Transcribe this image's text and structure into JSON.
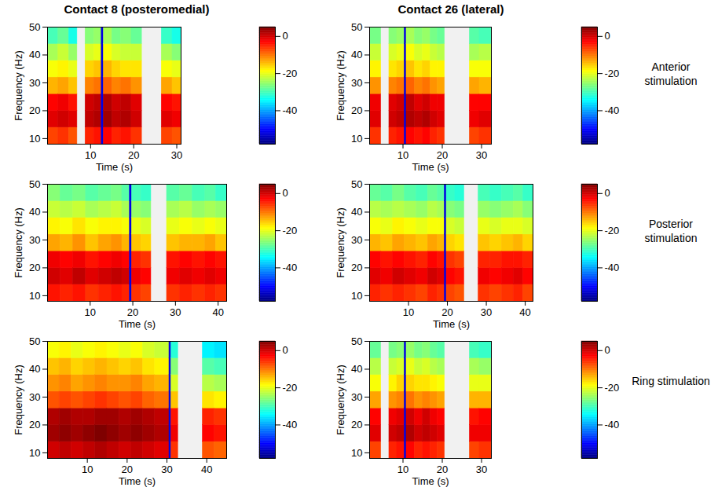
{
  "column_titles": [
    "Contact 8 (posteromedial)",
    "Contact 26 (lateral)"
  ],
  "row_labels": [
    "Anterior stimulation",
    "Posterior stimulation",
    "Ring stimulation"
  ],
  "chart_data": [
    {
      "type": "heatmap",
      "x_label": "Time (s)",
      "y_label": "Frequency (Hz)",
      "xlim": [
        0,
        31
      ],
      "xticks": [
        10,
        20,
        30
      ],
      "ylim": [
        8,
        50
      ],
      "yticks": [
        10,
        20,
        30,
        40,
        50
      ],
      "x_edges": [
        0,
        2.5,
        5,
        6.9,
        8.8,
        10.8,
        12.55,
        13.05,
        15,
        17,
        19.5,
        21.9,
        26.5,
        29,
        31
      ],
      "y_edges": [
        8,
        14,
        20,
        26,
        32,
        38,
        44,
        50
      ],
      "cells": [
        [
          -7,
          -1,
          -3,
          -14,
          -19,
          -24,
          -30
        ],
        [
          -6,
          0,
          -2,
          -13,
          -18,
          -22,
          -28
        ],
        [
          -8,
          -1,
          -4,
          -15,
          -20,
          -25,
          -33
        ],
        null,
        [
          -5,
          1,
          0,
          -11,
          -16,
          -21,
          -26
        ],
        [
          -4,
          2,
          1,
          -10,
          -15,
          -20,
          -25
        ],
        [
          -52,
          -52,
          -52,
          -52,
          -52,
          -52,
          -52
        ],
        [
          -3,
          3,
          2,
          -9,
          -14,
          -19,
          -24
        ],
        [
          -5,
          1,
          0,
          -11,
          -16,
          -21,
          -27
        ],
        [
          -4,
          2,
          1,
          -10,
          -17,
          -22,
          -26
        ],
        [
          -6,
          0,
          -1,
          -12,
          -17,
          -22,
          -28
        ],
        null,
        [
          -7,
          -1,
          -3,
          -13,
          -19,
          -24,
          -31
        ],
        [
          -8,
          -2,
          -4,
          -15,
          -20,
          -26,
          -33
        ]
      ],
      "color_range": [
        -58,
        5
      ],
      "color_ticks": [
        0,
        -20,
        -40
      ]
    },
    {
      "type": "heatmap",
      "x_label": "Time (s)",
      "y_label": "Frequency (Hz)",
      "xlim": [
        1.5,
        32.5
      ],
      "xticks": [
        10,
        20,
        30
      ],
      "ylim": [
        8,
        50
      ],
      "yticks": [
        10,
        20,
        30,
        40,
        50
      ],
      "x_edges": [
        1.5,
        4.4,
        6.5,
        8.5,
        10.4,
        10.9,
        13,
        15,
        17,
        18.8,
        20.6,
        27,
        29.5,
        32.5
      ],
      "y_edges": [
        8,
        14,
        20,
        26,
        32,
        38,
        44,
        50
      ],
      "cells": [
        [
          -6,
          -1,
          -2,
          -12,
          -18,
          -22,
          -27
        ],
        null,
        [
          -5,
          0,
          -1,
          -11,
          -17,
          -21,
          -26
        ],
        [
          -4,
          1,
          0,
          -10,
          -16,
          -20,
          -25
        ],
        [
          -52,
          -52,
          -52,
          -52,
          -52,
          -52,
          -52
        ],
        [
          -3,
          2,
          1,
          -9,
          -15,
          -19,
          -24
        ],
        [
          -4,
          1,
          -1,
          -11,
          -17,
          -21,
          -26
        ],
        [
          -3,
          2,
          0,
          -10,
          -16,
          -20,
          -25
        ],
        [
          -5,
          0,
          -2,
          -12,
          -18,
          -22,
          -27
        ],
        [
          -6,
          -1,
          -2,
          -13,
          -18,
          -23,
          -28
        ],
        null,
        [
          -7,
          -2,
          -3,
          -13,
          -19,
          -24,
          -29
        ],
        [
          -6,
          -1,
          -3,
          -14,
          -19,
          -23,
          -30
        ]
      ],
      "color_range": [
        -58,
        5
      ],
      "color_ticks": [
        0,
        -20,
        -40
      ]
    },
    {
      "type": "heatmap",
      "x_label": "Time (s)",
      "y_label": "Frequency (Hz)",
      "xlim": [
        0,
        42
      ],
      "xticks": [
        10,
        20,
        30,
        40
      ],
      "ylim": [
        8,
        50
      ],
      "yticks": [
        10,
        20,
        30,
        40,
        50
      ],
      "x_edges": [
        0,
        3,
        6,
        9,
        12,
        15,
        17.5,
        19.3,
        19.8,
        22,
        24.3,
        28,
        31,
        34,
        37,
        39.5,
        42
      ],
      "y_edges": [
        8,
        14,
        20,
        26,
        32,
        38,
        44,
        50
      ],
      "cells": [
        [
          -4,
          0,
          -2,
          -13,
          -18,
          -22,
          -26
        ],
        [
          -5,
          -1,
          -3,
          -14,
          -19,
          -23,
          -28
        ],
        [
          -4,
          1,
          -2,
          -12,
          -17,
          -22,
          -27
        ],
        [
          -6,
          -1,
          -4,
          -15,
          -19,
          -24,
          -29
        ],
        [
          -5,
          0,
          -3,
          -13,
          -18,
          -23,
          -28
        ],
        [
          -4,
          1,
          -2,
          -12,
          -18,
          -22,
          -27
        ],
        [
          -5,
          0,
          -3,
          -14,
          -19,
          -24,
          -29
        ],
        [
          -52,
          -52,
          -52,
          -52,
          -52,
          -52,
          -52
        ],
        [
          -6,
          -2,
          -5,
          -15,
          -20,
          -25,
          -30
        ],
        [
          -7,
          -3,
          -6,
          -16,
          -21,
          -26,
          -31
        ],
        null,
        [
          -6,
          -2,
          -4,
          -15,
          -20,
          -24,
          -29
        ],
        [
          -5,
          -1,
          -3,
          -14,
          -19,
          -23,
          -28
        ],
        [
          -6,
          -2,
          -4,
          -14,
          -20,
          -25,
          -30
        ],
        [
          -5,
          -1,
          -3,
          -13,
          -19,
          -24,
          -29
        ],
        [
          -6,
          -2,
          -4,
          -15,
          -20,
          -25,
          -31
        ]
      ],
      "color_range": [
        -58,
        5
      ],
      "color_ticks": [
        0,
        -20,
        -40
      ]
    },
    {
      "type": "heatmap",
      "x_label": "Time (s)",
      "y_label": "Frequency (Hz)",
      "xlim": [
        0,
        42
      ],
      "xticks": [
        10,
        20,
        30,
        40
      ],
      "ylim": [
        8,
        50
      ],
      "yticks": [
        10,
        20,
        30,
        40,
        50
      ],
      "x_edges": [
        0,
        3,
        6,
        9,
        12,
        15,
        17.5,
        19.3,
        19.8,
        22,
        24.3,
        28,
        31,
        34,
        37,
        39.5,
        42
      ],
      "y_edges": [
        8,
        14,
        20,
        26,
        32,
        38,
        44,
        50
      ],
      "cells": [
        [
          -5,
          -1,
          -3,
          -14,
          -19,
          -23,
          -28
        ],
        [
          -6,
          -2,
          -4,
          -15,
          -20,
          -24,
          -29
        ],
        [
          -5,
          0,
          -3,
          -13,
          -18,
          -23,
          -27
        ],
        [
          -6,
          -1,
          -4,
          -14,
          -19,
          -24,
          -29
        ],
        [
          -7,
          -2,
          -5,
          -15,
          -20,
          -25,
          -30
        ],
        [
          -5,
          0,
          -3,
          -13,
          -19,
          -23,
          -28
        ],
        [
          -6,
          -1,
          -4,
          -14,
          -19,
          -24,
          -29
        ],
        [
          -52,
          -52,
          -52,
          -52,
          -52,
          -52,
          -52
        ],
        [
          -7,
          -3,
          -6,
          -16,
          -21,
          -26,
          -31
        ],
        [
          -8,
          -4,
          -7,
          -17,
          -22,
          -27,
          -32
        ],
        null,
        [
          -6,
          -2,
          -5,
          -15,
          -20,
          -25,
          -30
        ],
        [
          -7,
          -3,
          -5,
          -16,
          -21,
          -26,
          -31
        ],
        [
          -6,
          -2,
          -4,
          -15,
          -20,
          -25,
          -30
        ],
        [
          -5,
          -1,
          -4,
          -14,
          -20,
          -24,
          -29
        ],
        [
          -7,
          -3,
          -5,
          -16,
          -21,
          -26,
          -31
        ]
      ],
      "color_range": [
        -58,
        5
      ],
      "color_ticks": [
        0,
        -20,
        -40
      ]
    },
    {
      "type": "heatmap",
      "x_label": "Time (s)",
      "y_label": "Frequency (Hz)",
      "xlim": [
        0,
        45
      ],
      "xticks": [
        10,
        20,
        30,
        40
      ],
      "ylim": [
        8,
        50
      ],
      "yticks": [
        10,
        20,
        30,
        40,
        50
      ],
      "x_edges": [
        0,
        3,
        6,
        9,
        12,
        15,
        18,
        21,
        24,
        27,
        30.6,
        31.1,
        32.8,
        39,
        42,
        45
      ],
      "y_edges": [
        8,
        14,
        20,
        26,
        32,
        38,
        44,
        50
      ],
      "cells": [
        [
          0,
          3,
          2,
          -8,
          -12,
          -15,
          -19
        ],
        [
          1,
          4,
          3,
          -7,
          -11,
          -14,
          -18
        ],
        [
          0,
          3,
          2,
          -8,
          -13,
          -16,
          -20
        ],
        [
          1,
          4,
          2,
          -7,
          -12,
          -15,
          -19
        ],
        [
          2,
          5,
          3,
          -6,
          -11,
          -14,
          -18
        ],
        [
          1,
          4,
          3,
          -7,
          -12,
          -15,
          -19
        ],
        [
          0,
          3,
          2,
          -8,
          -12,
          -16,
          -20
        ],
        [
          1,
          4,
          3,
          -7,
          -11,
          -15,
          -19
        ],
        [
          0,
          3,
          2,
          -9,
          -13,
          -17,
          -21
        ],
        [
          -1,
          2,
          1,
          -10,
          -14,
          -18,
          -22
        ],
        [
          -52,
          -52,
          -52,
          -52,
          -52,
          -52,
          -52
        ],
        [
          -6,
          -2,
          -4,
          -15,
          -21,
          -26,
          -32
        ],
        null,
        [
          -8,
          -3,
          -5,
          -17,
          -23,
          -29,
          -35
        ],
        [
          -9,
          -4,
          -6,
          -18,
          -24,
          -30,
          -36
        ]
      ],
      "color_range": [
        -58,
        5
      ],
      "color_ticks": [
        0,
        -20,
        -40
      ]
    },
    {
      "type": "heatmap",
      "x_label": "Time (s)",
      "y_label": "Frequency (Hz)",
      "xlim": [
        1.5,
        32.5
      ],
      "xticks": [
        10,
        20,
        30
      ],
      "ylim": [
        8,
        50
      ],
      "yticks": [
        10,
        20,
        30,
        40,
        50
      ],
      "x_edges": [
        1.5,
        4.4,
        6.5,
        8.5,
        10.4,
        10.9,
        13,
        15,
        17,
        18.8,
        20.6,
        27,
        29.5,
        32.5
      ],
      "y_edges": [
        8,
        14,
        20,
        26,
        32,
        38,
        44,
        50
      ],
      "cells": [
        [
          -7,
          -1,
          -3,
          -13,
          -19,
          -23,
          -28
        ],
        null,
        [
          -5,
          0,
          -2,
          -12,
          -18,
          -22,
          -27
        ],
        [
          -4,
          1,
          -1,
          -11,
          -16,
          -21,
          -26
        ],
        [
          -52,
          -52,
          -52,
          -52,
          -52,
          -52,
          -52
        ],
        [
          -3,
          2,
          0,
          -10,
          -16,
          -20,
          -25
        ],
        [
          -5,
          0,
          -2,
          -12,
          -17,
          -22,
          -27
        ],
        [
          -4,
          1,
          0,
          -11,
          -17,
          -21,
          -26
        ],
        [
          -5,
          0,
          -2,
          -12,
          -18,
          -23,
          -28
        ],
        [
          -6,
          -1,
          -3,
          -13,
          -19,
          -24,
          -29
        ],
        null,
        [
          -7,
          -2,
          -4,
          -14,
          -20,
          -24,
          -30
        ],
        [
          -6,
          -2,
          -3,
          -14,
          -20,
          -25,
          -31
        ]
      ],
      "color_range": [
        -58,
        5
      ],
      "color_ticks": [
        0,
        -20,
        -40
      ]
    }
  ]
}
